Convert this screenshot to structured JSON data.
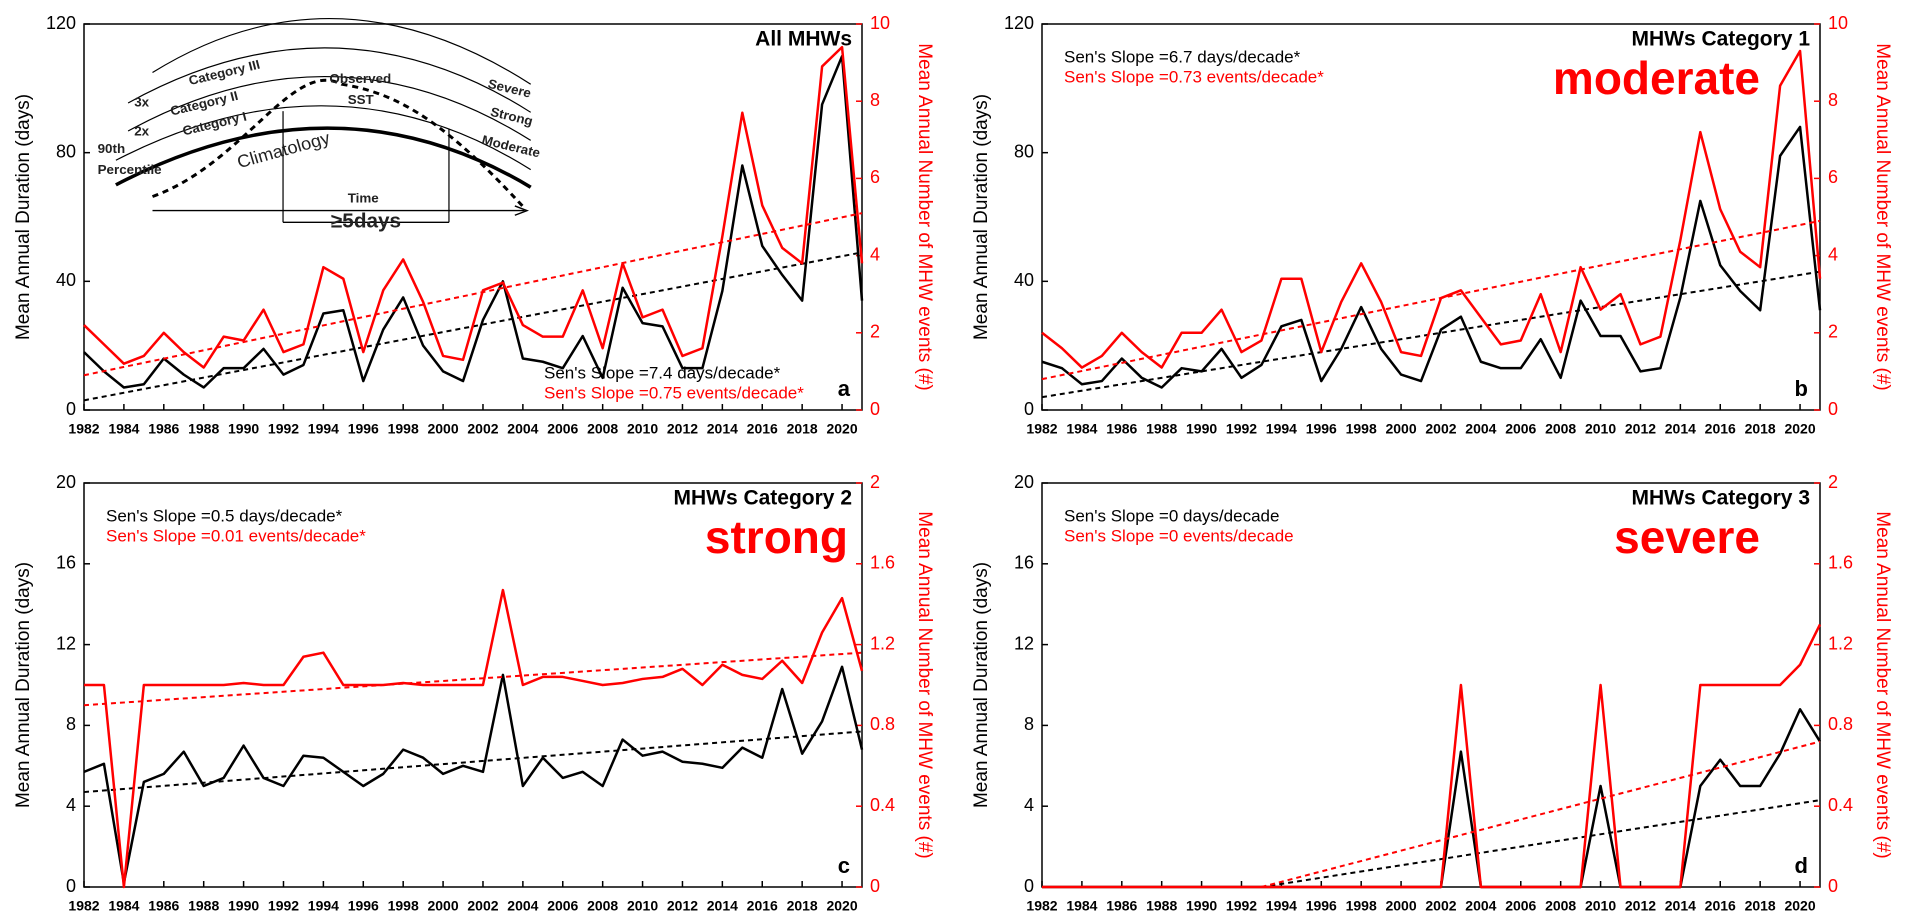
{
  "chart_data": [
    {
      "type": "line",
      "title": "All MHWs",
      "panel_label": "a",
      "ylabel": "Mean Annual Duration (days)",
      "y2label": "Mean Annual Number of MHW events (#)",
      "x": [
        1982,
        1983,
        1984,
        1985,
        1986,
        1987,
        1988,
        1989,
        1990,
        1991,
        1992,
        1993,
        1994,
        1995,
        1996,
        1997,
        1998,
        1999,
        2000,
        2001,
        2002,
        2003,
        2004,
        2005,
        2006,
        2007,
        2008,
        2009,
        2010,
        2011,
        2012,
        2013,
        2014,
        2015,
        2016,
        2017,
        2018,
        2019,
        2020,
        2021
      ],
      "xlim": [
        1982,
        2021
      ],
      "xticks": [
        1982,
        1984,
        1986,
        1988,
        1990,
        1992,
        1994,
        1996,
        1998,
        2000,
        2002,
        2004,
        2006,
        2008,
        2010,
        2012,
        2014,
        2016,
        2018,
        2020
      ],
      "ylim": [
        0,
        120
      ],
      "yticks": [
        0,
        40,
        80,
        120
      ],
      "y2lim": [
        0,
        10
      ],
      "y2ticks": [
        0,
        2,
        4,
        6,
        8,
        10
      ],
      "series": [
        {
          "color": "#000000",
          "values": [
            18,
            12,
            7,
            8,
            16,
            11,
            7,
            13,
            13,
            19,
            11,
            14,
            30,
            31,
            9,
            25,
            35,
            20,
            12,
            9,
            28,
            40,
            16,
            15,
            13,
            23,
            10,
            38,
            27,
            26,
            13,
            13,
            37,
            76,
            51,
            42,
            34,
            95,
            110,
            34
          ],
          "trend_x": [
            1982,
            2021
          ],
          "trend": [
            3,
            49
          ]
        },
        {
          "color": "#ff0000",
          "axis": "y2",
          "values": [
            2.2,
            1.7,
            1.2,
            1.4,
            2.0,
            1.5,
            1.1,
            1.9,
            1.8,
            2.6,
            1.5,
            1.7,
            3.7,
            3.4,
            1.5,
            3.1,
            3.9,
            2.8,
            1.4,
            1.3,
            3.1,
            3.3,
            2.2,
            1.9,
            1.9,
            3.1,
            1.6,
            3.8,
            2.4,
            2.6,
            1.4,
            1.6,
            4.5,
            7.7,
            5.3,
            4.2,
            3.8,
            8.9,
            9.4,
            3.8
          ],
          "trend_x": [
            1982,
            2021
          ],
          "trend": [
            0.9,
            5.1
          ]
        }
      ],
      "annotations": [
        {
          "text": "Sen's Slope =7.4 days/decade*",
          "color": "#000000"
        },
        {
          "text": "Sen's Slope =0.75 events/decade*",
          "color": "#ff0000"
        }
      ],
      "inset": [
        "Category III",
        "Category II",
        "Category I",
        "3x",
        "2x",
        "90th",
        "Percentile",
        "Observed",
        "SST",
        "Severe",
        "Strong",
        "Moderate",
        "Climatology",
        "Time",
        "≥5days"
      ]
    },
    {
      "type": "line",
      "title": "MHWs Category 1",
      "panel_label": "b",
      "category_label": "moderate",
      "ylabel": "Mean Annual Duration (days)",
      "y2label": "Mean Annual Number of MHW events (#)",
      "x": [
        1982,
        1983,
        1984,
        1985,
        1986,
        1987,
        1988,
        1989,
        1990,
        1991,
        1992,
        1993,
        1994,
        1995,
        1996,
        1997,
        1998,
        1999,
        2000,
        2001,
        2002,
        2003,
        2004,
        2005,
        2006,
        2007,
        2008,
        2009,
        2010,
        2011,
        2012,
        2013,
        2014,
        2015,
        2016,
        2017,
        2018,
        2019,
        2020,
        2021
      ],
      "xlim": [
        1982,
        2021
      ],
      "xticks": [
        1982,
        1984,
        1986,
        1988,
        1990,
        1992,
        1994,
        1996,
        1998,
        2000,
        2002,
        2004,
        2006,
        2008,
        2010,
        2012,
        2014,
        2016,
        2018,
        2020
      ],
      "ylim": [
        0,
        120
      ],
      "yticks": [
        0,
        40,
        80,
        120
      ],
      "y2lim": [
        0,
        10
      ],
      "y2ticks": [
        0,
        2,
        4,
        6,
        8,
        10
      ],
      "series": [
        {
          "color": "#000000",
          "values": [
            15,
            13,
            8,
            9,
            16,
            10,
            7,
            13,
            12,
            19,
            10,
            14,
            26,
            28,
            9,
            19,
            32,
            19,
            11,
            9,
            25,
            29,
            15,
            13,
            13,
            22,
            10,
            34,
            23,
            23,
            12,
            13,
            35,
            65,
            45,
            37,
            31,
            79,
            88,
            31
          ],
          "trend_x": [
            1982,
            2021
          ],
          "trend": [
            4,
            43
          ]
        },
        {
          "color": "#ff0000",
          "axis": "y2",
          "values": [
            2.0,
            1.6,
            1.1,
            1.4,
            2.0,
            1.5,
            1.1,
            2.0,
            2.0,
            2.6,
            1.5,
            1.8,
            3.4,
            3.4,
            1.5,
            2.8,
            3.8,
            2.8,
            1.5,
            1.4,
            2.9,
            3.1,
            2.4,
            1.7,
            1.8,
            3.0,
            1.5,
            3.7,
            2.6,
            3.0,
            1.7,
            1.9,
            4.4,
            7.2,
            5.2,
            4.1,
            3.7,
            8.4,
            9.3,
            3.4
          ],
          "trend_x": [
            1982,
            2021
          ],
          "trend": [
            0.8,
            4.9
          ]
        }
      ],
      "annotations": [
        {
          "text": "Sen's Slope =6.7 days/decade*",
          "color": "#000000"
        },
        {
          "text": "Sen's Slope =0.73 events/decade*",
          "color": "#ff0000"
        }
      ]
    },
    {
      "type": "line",
      "title": "MHWs Category 2",
      "panel_label": "c",
      "category_label": "strong",
      "ylabel": "Mean Annual Duration (days)",
      "y2label": "Mean Annual Number of MHW events (#)",
      "x": [
        1982,
        1983,
        1984,
        1985,
        1986,
        1987,
        1988,
        1989,
        1990,
        1991,
        1992,
        1993,
        1994,
        1995,
        1996,
        1997,
        1998,
        1999,
        2000,
        2001,
        2002,
        2003,
        2004,
        2005,
        2006,
        2007,
        2008,
        2009,
        2010,
        2011,
        2012,
        2013,
        2014,
        2015,
        2016,
        2017,
        2018,
        2019,
        2020,
        2021
      ],
      "xlim": [
        1982,
        2021
      ],
      "xticks": [
        1982,
        1984,
        1986,
        1988,
        1990,
        1992,
        1994,
        1996,
        1998,
        2000,
        2002,
        2004,
        2006,
        2008,
        2010,
        2012,
        2014,
        2016,
        2018,
        2020
      ],
      "ylim": [
        0,
        20
      ],
      "yticks": [
        0,
        4,
        8,
        12,
        16,
        20
      ],
      "y2lim": [
        0,
        2
      ],
      "y2ticks": [
        0,
        0.4,
        0.8,
        1.2,
        1.6,
        2
      ],
      "series": [
        {
          "color": "#000000",
          "values": [
            5.7,
            6.1,
            0.2,
            5.2,
            5.6,
            6.7,
            5.0,
            5.4,
            7.0,
            5.4,
            5.0,
            6.5,
            6.4,
            5.7,
            5.0,
            5.6,
            6.8,
            6.4,
            5.6,
            6.0,
            5.7,
            10.5,
            5.0,
            6.4,
            5.4,
            5.7,
            5.0,
            7.3,
            6.5,
            6.7,
            6.2,
            6.1,
            5.9,
            6.9,
            6.4,
            9.8,
            6.6,
            8.2,
            10.9,
            6.8
          ],
          "trend_x": [
            1982,
            2021
          ],
          "trend": [
            4.7,
            7.7
          ]
        },
        {
          "color": "#ff0000",
          "axis": "y2",
          "values": [
            1,
            1,
            0,
            1,
            1,
            1,
            1,
            1,
            1.01,
            1,
            1,
            1.14,
            1.16,
            1,
            1,
            1,
            1.01,
            1,
            1,
            1,
            1,
            1.47,
            1,
            1.04,
            1.04,
            1.02,
            1,
            1.01,
            1.03,
            1.04,
            1.08,
            1,
            1.1,
            1.05,
            1.03,
            1.12,
            1.01,
            1.26,
            1.43,
            1.07
          ],
          "trend_x": [
            1982,
            2021
          ],
          "trend": [
            0.9,
            1.16
          ]
        }
      ],
      "annotations": [
        {
          "text": "Sen's Slope =0.5 days/decade*",
          "color": "#000000"
        },
        {
          "text": "Sen's Slope =0.01 events/decade*",
          "color": "#ff0000"
        }
      ]
    },
    {
      "type": "line",
      "title": "MHWs Category 3",
      "panel_label": "d",
      "category_label": "severe",
      "ylabel": "Mean Annual Duration (days)",
      "y2label": "Mean Annual Number of MHW events (#)",
      "x": [
        1982,
        1983,
        1984,
        1985,
        1986,
        1987,
        1988,
        1989,
        1990,
        1991,
        1992,
        1993,
        1994,
        1995,
        1996,
        1997,
        1998,
        1999,
        2000,
        2001,
        2002,
        2003,
        2004,
        2005,
        2006,
        2007,
        2008,
        2009,
        2010,
        2011,
        2012,
        2013,
        2014,
        2015,
        2016,
        2017,
        2018,
        2019,
        2020,
        2021
      ],
      "xlim": [
        1982,
        2021
      ],
      "xticks": [
        1982,
        1984,
        1986,
        1988,
        1990,
        1992,
        1994,
        1996,
        1998,
        2000,
        2002,
        2004,
        2006,
        2008,
        2010,
        2012,
        2014,
        2016,
        2018,
        2020
      ],
      "ylim": [
        0,
        20
      ],
      "yticks": [
        0,
        4,
        8,
        12,
        16,
        20
      ],
      "y2lim": [
        0,
        2
      ],
      "y2ticks": [
        0,
        0.4,
        0.8,
        1.2,
        1.6,
        2
      ],
      "series": [
        {
          "color": "#000000",
          "values": [
            0,
            0,
            0,
            0,
            0,
            0,
            0,
            0,
            0,
            0,
            0,
            0,
            0,
            0,
            0,
            0,
            0,
            0,
            0,
            0,
            0,
            6.7,
            0,
            0,
            0,
            0,
            0,
            0,
            5,
            0,
            0,
            0,
            0,
            5,
            6.3,
            5,
            5,
            6.6,
            8.8,
            7.2
          ],
          "trend_x": [
            1993,
            2021
          ],
          "trend": [
            0,
            4.3
          ]
        },
        {
          "color": "#ff0000",
          "axis": "y2",
          "values": [
            0,
            0,
            0,
            0,
            0,
            0,
            0,
            0,
            0,
            0,
            0,
            0,
            0,
            0,
            0,
            0,
            0,
            0,
            0,
            0,
            0,
            1,
            0,
            0,
            0,
            0,
            0,
            0,
            1,
            0,
            0,
            0,
            0,
            1,
            1,
            1,
            1,
            1,
            1.1,
            1.3
          ],
          "trend_x": [
            1993,
            2021
          ],
          "trend": [
            0,
            0.72
          ]
        }
      ],
      "annotations": [
        {
          "text": "Sen's Slope =0 days/decade",
          "color": "#000000"
        },
        {
          "text": "Sen's Slope =0 events/decade",
          "color": "#ff0000"
        }
      ]
    }
  ]
}
